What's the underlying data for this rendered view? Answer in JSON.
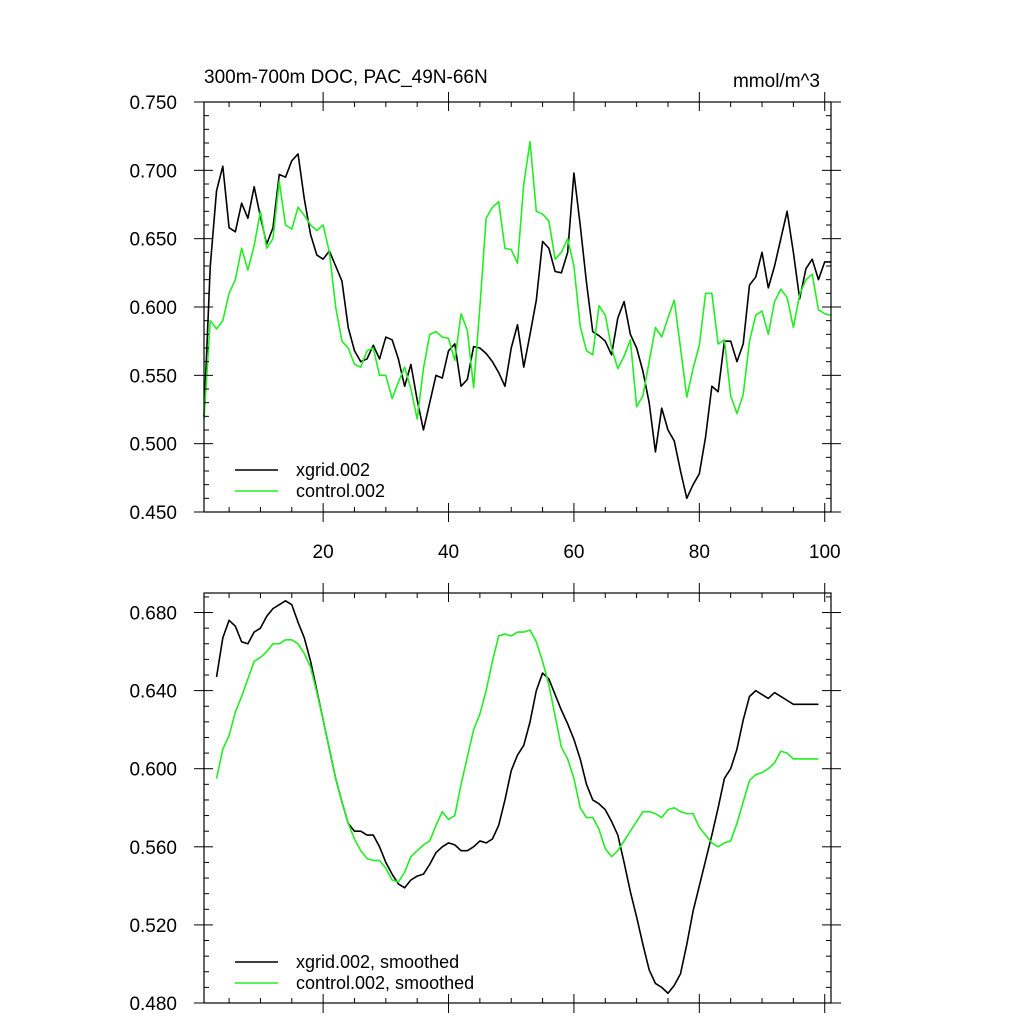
{
  "chart_data": [
    {
      "type": "line",
      "title": "300m-700m DOC, PAC_49N-66N",
      "units_label": "mmol/m^3",
      "xlim": [
        1,
        101
      ],
      "ylim": [
        0.45,
        0.75
      ],
      "x_ticks": [
        20,
        40,
        60,
        80,
        100
      ],
      "x_tick_labels": [
        "20",
        "40",
        "60",
        "80",
        "100"
      ],
      "y_ticks": [
        0.45,
        0.5,
        0.55,
        0.6,
        0.65,
        0.7,
        0.75
      ],
      "y_tick_labels": [
        "0.450",
        "0.500",
        "0.550",
        "0.600",
        "0.650",
        "0.700",
        "0.750"
      ],
      "legend_position": "bottom-left",
      "series": [
        {
          "name": "xgrid.002",
          "color": "#000000",
          "x": [
            1,
            2,
            3,
            4,
            5,
            6,
            7,
            8,
            9,
            10,
            11,
            12,
            13,
            14,
            15,
            16,
            17,
            18,
            19,
            20,
            21,
            22,
            23,
            24,
            25,
            26,
            27,
            28,
            29,
            30,
            31,
            32,
            33,
            34,
            35,
            36,
            37,
            38,
            39,
            40,
            41,
            42,
            43,
            44,
            45,
            46,
            47,
            48,
            49,
            50,
            51,
            52,
            53,
            54,
            55,
            56,
            57,
            58,
            59,
            60,
            61,
            62,
            63,
            64,
            65,
            66,
            67,
            68,
            69,
            70,
            71,
            72,
            73,
            74,
            75,
            76,
            77,
            78,
            79,
            80,
            81,
            82,
            83,
            84,
            85,
            86,
            87,
            88,
            89,
            90,
            91,
            92,
            93,
            94,
            95,
            96,
            97,
            98,
            99,
            100,
            101
          ],
          "values": [
            0.52,
            0.63,
            0.685,
            0.703,
            0.658,
            0.655,
            0.676,
            0.665,
            0.688,
            0.666,
            0.646,
            0.658,
            0.697,
            0.695,
            0.707,
            0.712,
            0.679,
            0.653,
            0.638,
            0.635,
            0.641,
            0.63,
            0.619,
            0.585,
            0.568,
            0.56,
            0.562,
            0.572,
            0.562,
            0.578,
            0.576,
            0.562,
            0.542,
            0.558,
            0.532,
            0.51,
            0.53,
            0.55,
            0.548,
            0.568,
            0.573,
            0.542,
            0.547,
            0.571,
            0.57,
            0.566,
            0.56,
            0.552,
            0.542,
            0.57,
            0.587,
            0.556,
            0.58,
            0.605,
            0.648,
            0.643,
            0.626,
            0.625,
            0.64,
            0.698,
            0.66,
            0.618,
            0.582,
            0.579,
            0.575,
            0.565,
            0.592,
            0.604,
            0.58,
            0.57,
            0.553,
            0.53,
            0.494,
            0.526,
            0.51,
            0.502,
            0.48,
            0.46,
            0.47,
            0.478,
            0.505,
            0.542,
            0.538,
            0.575,
            0.575,
            0.56,
            0.573,
            0.616,
            0.622,
            0.64,
            0.614,
            0.63,
            0.65,
            0.67,
            0.64,
            0.606,
            0.628,
            0.635,
            0.62,
            0.633,
            0.633
          ]
        },
        {
          "name": "control.002",
          "color": "#22ee22",
          "x": [
            1,
            2,
            3,
            4,
            5,
            6,
            7,
            8,
            9,
            10,
            11,
            12,
            13,
            14,
            15,
            16,
            17,
            18,
            19,
            20,
            21,
            22,
            23,
            24,
            25,
            26,
            27,
            28,
            29,
            30,
            31,
            32,
            33,
            34,
            35,
            36,
            37,
            38,
            39,
            40,
            41,
            42,
            43,
            44,
            45,
            46,
            47,
            48,
            49,
            50,
            51,
            52,
            53,
            54,
            55,
            56,
            57,
            58,
            59,
            60,
            61,
            62,
            63,
            64,
            65,
            66,
            67,
            68,
            69,
            70,
            71,
            72,
            73,
            74,
            75,
            76,
            77,
            78,
            79,
            80,
            81,
            82,
            83,
            84,
            85,
            86,
            87,
            88,
            89,
            90,
            91,
            92,
            93,
            94,
            95,
            96,
            97,
            98,
            99,
            100,
            101
          ],
          "values": [
            0.518,
            0.59,
            0.584,
            0.59,
            0.61,
            0.62,
            0.643,
            0.627,
            0.645,
            0.67,
            0.643,
            0.65,
            0.692,
            0.66,
            0.657,
            0.673,
            0.667,
            0.66,
            0.656,
            0.66,
            0.64,
            0.6,
            0.575,
            0.57,
            0.558,
            0.556,
            0.568,
            0.57,
            0.55,
            0.55,
            0.533,
            0.545,
            0.556,
            0.54,
            0.518,
            0.555,
            0.58,
            0.582,
            0.578,
            0.577,
            0.561,
            0.595,
            0.583,
            0.541,
            0.6,
            0.665,
            0.673,
            0.677,
            0.643,
            0.642,
            0.632,
            0.69,
            0.721,
            0.67,
            0.668,
            0.663,
            0.635,
            0.64,
            0.65,
            0.63,
            0.586,
            0.568,
            0.565,
            0.601,
            0.594,
            0.57,
            0.555,
            0.564,
            0.576,
            0.527,
            0.535,
            0.56,
            0.585,
            0.578,
            0.592,
            0.605,
            0.57,
            0.534,
            0.555,
            0.572,
            0.61,
            0.61,
            0.573,
            0.576,
            0.535,
            0.522,
            0.536,
            0.575,
            0.594,
            0.597,
            0.58,
            0.604,
            0.613,
            0.607,
            0.585,
            0.609,
            0.62,
            0.624,
            0.598,
            0.595,
            0.594
          ]
        }
      ]
    },
    {
      "type": "line",
      "title": "",
      "xlim": [
        1,
        101
      ],
      "ylim": [
        0.48,
        0.69
      ],
      "x_ticks": [
        20,
        40,
        60,
        80,
        100
      ],
      "y_ticks": [
        0.48,
        0.52,
        0.56,
        0.6,
        0.64,
        0.68
      ],
      "y_tick_labels": [
        "0.480",
        "0.520",
        "0.560",
        "0.600",
        "0.640",
        "0.680"
      ],
      "legend_position": "bottom-left",
      "series": [
        {
          "name": "xgrid.002, smoothed",
          "color": "#000000",
          "x": [
            3,
            4,
            5,
            6,
            7,
            8,
            9,
            10,
            11,
            12,
            13,
            14,
            15,
            16,
            17,
            18,
            19,
            20,
            21,
            22,
            23,
            24,
            25,
            26,
            27,
            28,
            29,
            30,
            31,
            32,
            33,
            34,
            35,
            36,
            37,
            38,
            39,
            40,
            41,
            42,
            43,
            44,
            45,
            46,
            47,
            48,
            49,
            50,
            51,
            52,
            53,
            54,
            55,
            56,
            57,
            58,
            59,
            60,
            61,
            62,
            63,
            64,
            65,
            66,
            67,
            68,
            69,
            70,
            71,
            72,
            73,
            74,
            75,
            76,
            77,
            78,
            79,
            80,
            81,
            82,
            83,
            84,
            85,
            86,
            87,
            88,
            89,
            90,
            91,
            92,
            93,
            94,
            95,
            96,
            97,
            98,
            99
          ],
          "values": [
            0.647,
            0.667,
            0.676,
            0.673,
            0.665,
            0.664,
            0.67,
            0.672,
            0.678,
            0.682,
            0.684,
            0.686,
            0.684,
            0.675,
            0.667,
            0.655,
            0.64,
            0.625,
            0.61,
            0.595,
            0.583,
            0.572,
            0.568,
            0.568,
            0.566,
            0.566,
            0.56,
            0.552,
            0.546,
            0.541,
            0.539,
            0.543,
            0.545,
            0.546,
            0.551,
            0.557,
            0.56,
            0.562,
            0.561,
            0.558,
            0.558,
            0.56,
            0.563,
            0.562,
            0.564,
            0.571,
            0.584,
            0.599,
            0.607,
            0.612,
            0.624,
            0.64,
            0.649,
            0.646,
            0.638,
            0.63,
            0.623,
            0.615,
            0.605,
            0.592,
            0.584,
            0.582,
            0.579,
            0.573,
            0.566,
            0.552,
            0.537,
            0.524,
            0.51,
            0.497,
            0.49,
            0.488,
            0.485,
            0.489,
            0.495,
            0.51,
            0.527,
            0.54,
            0.553,
            0.566,
            0.58,
            0.595,
            0.6,
            0.61,
            0.625,
            0.637,
            0.64,
            0.638,
            0.636,
            0.639,
            0.637,
            0.635,
            0.633,
            0.633,
            0.633,
            0.633,
            0.633
          ]
        },
        {
          "name": "control.002, smoothed",
          "color": "#22ee22",
          "x": [
            3,
            4,
            5,
            6,
            7,
            8,
            9,
            10,
            11,
            12,
            13,
            14,
            15,
            16,
            17,
            18,
            19,
            20,
            21,
            22,
            23,
            24,
            25,
            26,
            27,
            28,
            29,
            30,
            31,
            32,
            33,
            34,
            35,
            36,
            37,
            38,
            39,
            40,
            41,
            42,
            43,
            44,
            45,
            46,
            47,
            48,
            49,
            50,
            51,
            52,
            53,
            54,
            55,
            56,
            57,
            58,
            59,
            60,
            61,
            62,
            63,
            64,
            65,
            66,
            67,
            68,
            69,
            70,
            71,
            72,
            73,
            74,
            75,
            76,
            77,
            78,
            79,
            80,
            81,
            82,
            83,
            84,
            85,
            86,
            87,
            88,
            89,
            90,
            91,
            92,
            93,
            94,
            95,
            96,
            97,
            98,
            99
          ],
          "values": [
            0.595,
            0.61,
            0.617,
            0.629,
            0.637,
            0.646,
            0.655,
            0.657,
            0.66,
            0.664,
            0.664,
            0.666,
            0.666,
            0.664,
            0.659,
            0.652,
            0.639,
            0.625,
            0.61,
            0.595,
            0.583,
            0.572,
            0.564,
            0.558,
            0.554,
            0.553,
            0.553,
            0.549,
            0.543,
            0.542,
            0.547,
            0.555,
            0.558,
            0.561,
            0.563,
            0.571,
            0.578,
            0.574,
            0.576,
            0.592,
            0.606,
            0.62,
            0.628,
            0.64,
            0.655,
            0.668,
            0.669,
            0.668,
            0.67,
            0.67,
            0.671,
            0.665,
            0.655,
            0.643,
            0.627,
            0.611,
            0.605,
            0.595,
            0.58,
            0.575,
            0.575,
            0.569,
            0.559,
            0.555,
            0.558,
            0.563,
            0.568,
            0.573,
            0.578,
            0.578,
            0.577,
            0.575,
            0.579,
            0.58,
            0.578,
            0.577,
            0.577,
            0.57,
            0.566,
            0.562,
            0.56,
            0.562,
            0.563,
            0.572,
            0.583,
            0.594,
            0.597,
            0.598,
            0.6,
            0.603,
            0.609,
            0.608,
            0.605,
            0.605,
            0.605,
            0.605,
            0.605
          ]
        }
      ]
    }
  ]
}
